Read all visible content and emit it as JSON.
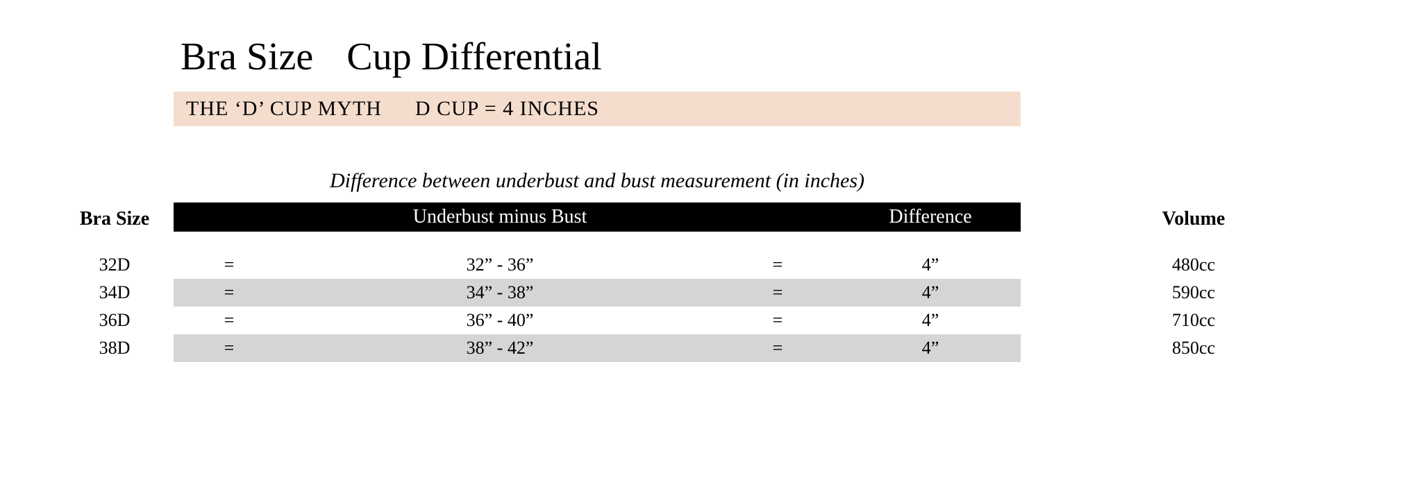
{
  "title": {
    "left": "Bra Size",
    "right": "Cup Differential"
  },
  "banner": {
    "left": "THE  ‘D’ CUP MYTH",
    "right": "D CUP = 4 INCHES",
    "bg_color": "#f5ddcd",
    "text_color": "#000000"
  },
  "subcaption": "Difference between underbust and bust measurement (in inches)",
  "columns": {
    "side_left": "Bra Size",
    "header_mid1": "Underbust minus Bust",
    "header_mid2": "Difference",
    "side_right": "Volume"
  },
  "header_bar": {
    "bg_color": "#000000",
    "text_color": "#ffffff"
  },
  "row_stripe_color": "#d5d5d5",
  "rows": [
    {
      "size": "32D",
      "eq1": "=",
      "umb": "32” -  36”",
      "eq2": "=",
      "diff": "4”",
      "vol": "480cc",
      "striped": false
    },
    {
      "size": "34D",
      "eq1": "=",
      "umb": "34” -  38”",
      "eq2": "=",
      "diff": "4”",
      "vol": "590cc",
      "striped": true
    },
    {
      "size": "36D",
      "eq1": "=",
      "umb": "36” -  40”",
      "eq2": "=",
      "diff": "4”",
      "vol": "710cc",
      "striped": false
    },
    {
      "size": "38D",
      "eq1": "=",
      "umb": "38” -  42”",
      "eq2": "=",
      "diff": "4”",
      "vol": "850cc",
      "striped": true
    }
  ]
}
